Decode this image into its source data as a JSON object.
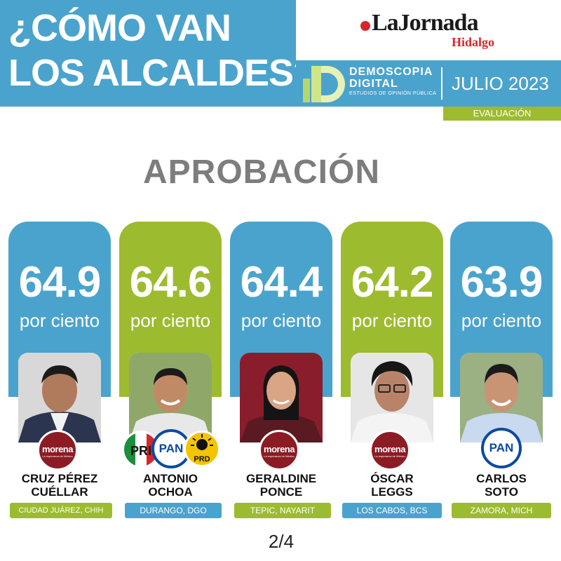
{
  "header": {
    "title_line1": "¿CÓMO VAN",
    "title_line2": "LOS ALCALDES?",
    "logo_main": "LaJornada",
    "logo_sub": "Hidalgo",
    "pollster_line1": "DEMOSCOPIA",
    "pollster_line2": "DIGITAL",
    "pollster_tagline": "ESTUDIOS DE OPINIÓN PÚBLICA",
    "date": "JULIO 2023",
    "tag": "EVALUACIÓN"
  },
  "section_title": "APROBACIÓN",
  "unit_label": "por ciento",
  "colors": {
    "blue": "#4aa3cc",
    "green": "#9dbb2f",
    "morena": "#8b1c24",
    "pan": "#0b4aa2"
  },
  "candidates": [
    {
      "value": "64.9",
      "name_line1": "CRUZ PÉREZ",
      "name_line2": "CUÉLLAR",
      "city": "CIUDAD JUÁREZ, CHIH",
      "parties": [
        "morena"
      ]
    },
    {
      "value": "64.6",
      "name_line1": "ANTONIO",
      "name_line2": "OCHOA",
      "city": "DURANGO, DGO",
      "parties": [
        "PRI",
        "PAN",
        "PRD"
      ]
    },
    {
      "value": "64.4",
      "name_line1": "GERALDINE",
      "name_line2": "PONCE",
      "city": "TEPIC, NAYARIT",
      "parties": [
        "morena"
      ]
    },
    {
      "value": "64.2",
      "name_line1": "ÓSCAR",
      "name_line2": "LEGGS",
      "city": "LOS CABOS, BCS",
      "parties": [
        "morena"
      ]
    },
    {
      "value": "63.9",
      "name_line1": "CARLOS",
      "name_line2": "SOTO",
      "city": "ZAMORA, MICH",
      "parties": [
        "PAN"
      ]
    }
  ],
  "party_logos": {
    "morena_name": "morena",
    "morena_slogan": "La esperanza de México",
    "pan": "PAN",
    "pri": "PRI",
    "prd": "PRD"
  },
  "page": "2/4"
}
